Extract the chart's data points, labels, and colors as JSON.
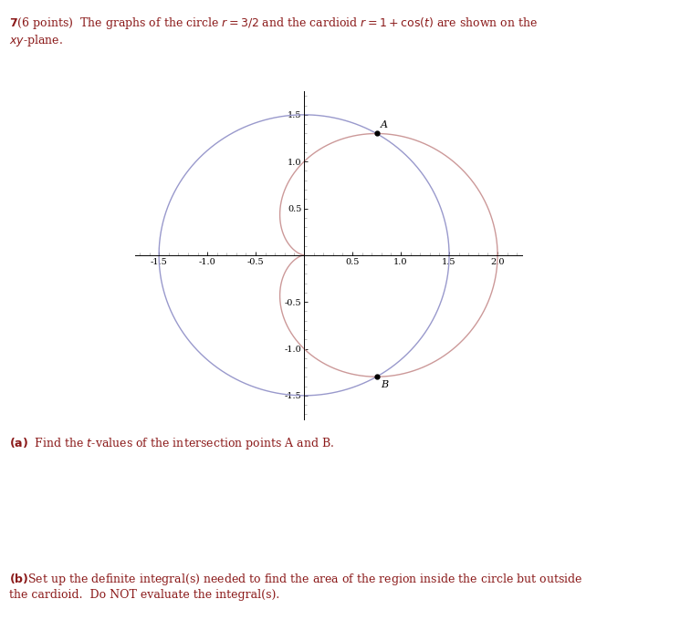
{
  "circle_color": "#9999cc",
  "cardioid_color": "#cc9999",
  "point_color": "#000000",
  "bg_color": "#ffffff",
  "xlim": [
    -1.75,
    2.25
  ],
  "ylim": [
    -1.75,
    1.75
  ],
  "xticks": [
    -1.5,
    -1.0,
    -0.5,
    0.5,
    1.0,
    1.5,
    2.0
  ],
  "yticks": [
    -1.5,
    -1.0,
    -0.5,
    0.5,
    1.0,
    1.5
  ],
  "circle_r": 1.5,
  "label_A": "A",
  "label_B": "B",
  "line_width": 1.0
}
